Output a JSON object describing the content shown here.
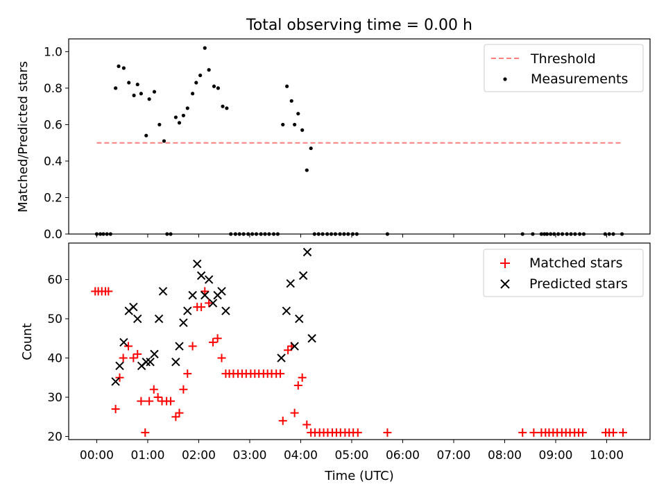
{
  "chart_data": [
    {
      "type": "scatter",
      "title": "Total observing time = 0.00 h",
      "ylabel": "Matched/Predicted stars",
      "xlim": [
        -0.55,
        10.85
      ],
      "ylim": [
        0,
        1.07
      ],
      "yticks": [
        0.0,
        0.2,
        0.4,
        0.6,
        0.8,
        1.0
      ],
      "ytick_labels": [
        "0.0",
        "0.2",
        "0.4",
        "0.6",
        "0.8",
        "1.0"
      ],
      "legend_position": "top-right",
      "threshold": {
        "name": "Threshold",
        "value": 0.5,
        "x_range": [
          0,
          10.3
        ],
        "color": "#ff7f7f",
        "style": "dashed"
      },
      "series": [
        {
          "name": "Measurements",
          "color": "#000000",
          "x": [
            0.0,
            0.07,
            0.13,
            0.2,
            0.27,
            0.37,
            0.43,
            0.53,
            0.63,
            0.73,
            0.8,
            0.87,
            0.97,
            1.03,
            1.13,
            1.23,
            1.32,
            1.38,
            1.45,
            1.55,
            1.62,
            1.7,
            1.78,
            1.88,
            1.95,
            2.03,
            2.12,
            2.2,
            2.3,
            2.38,
            2.47,
            2.55,
            2.63,
            2.72,
            2.8,
            2.88,
            2.97,
            3.05,
            3.13,
            3.22,
            3.3,
            3.38,
            3.47,
            3.55,
            3.65,
            3.73,
            3.82,
            3.88,
            3.95,
            4.03,
            4.12,
            4.2,
            4.27,
            4.35,
            4.43,
            4.52,
            4.6,
            4.68,
            4.77,
            4.85,
            4.93,
            5.02,
            5.1,
            5.7,
            8.35,
            8.55,
            8.72,
            8.78,
            8.83,
            8.9,
            8.97,
            9.05,
            9.13,
            9.22,
            9.3,
            9.38,
            9.47,
            9.55,
            9.97,
            10.05,
            10.13,
            10.3
          ],
          "y": [
            0,
            0,
            0,
            0,
            0,
            0.8,
            0.92,
            0.91,
            0.83,
            0.76,
            0.82,
            0.77,
            0.54,
            0.74,
            0.78,
            0.6,
            0.51,
            0,
            0,
            0.64,
            0.61,
            0.65,
            0.69,
            0.77,
            0.83,
            0.87,
            1.02,
            0.9,
            0.81,
            0.8,
            0.7,
            0.69,
            0,
            0,
            0,
            0,
            0,
            0,
            0,
            0,
            0,
            0,
            0,
            0,
            0.6,
            0.81,
            0.73,
            0.6,
            0.66,
            0.57,
            0.35,
            0.47,
            0,
            0,
            0,
            0,
            0,
            0,
            0,
            0,
            0,
            0,
            0,
            0,
            0,
            0,
            0,
            0,
            0,
            0,
            0,
            0,
            0,
            0,
            0,
            0,
            0,
            0,
            0,
            0,
            0,
            0
          ]
        }
      ]
    },
    {
      "type": "scatter",
      "xlabel": "Time (UTC)",
      "ylabel": "Count",
      "xlim": [
        -0.55,
        10.85
      ],
      "ylim": [
        19.2,
        69.3
      ],
      "yticks": [
        20,
        30,
        40,
        50,
        60
      ],
      "ytick_labels": [
        "20",
        "30",
        "40",
        "50",
        "60"
      ],
      "xticks": [
        0,
        1,
        2,
        3,
        4,
        5,
        6,
        7,
        8,
        9,
        10
      ],
      "xtick_labels": [
        "00:00",
        "01:00",
        "02:00",
        "03:00",
        "04:00",
        "05:00",
        "06:00",
        "07:00",
        "08:00",
        "09:00",
        "10:00"
      ],
      "legend_position": "top-right",
      "series": [
        {
          "name": "Matched stars",
          "color": "#ff0000",
          "marker": "plus",
          "x": [
            -0.03,
            0.03,
            0.1,
            0.17,
            0.23,
            0.37,
            0.45,
            0.52,
            0.62,
            0.72,
            0.8,
            0.87,
            0.95,
            1.03,
            1.12,
            1.2,
            1.28,
            1.37,
            1.45,
            1.55,
            1.62,
            1.7,
            1.78,
            1.88,
            1.97,
            2.05,
            2.12,
            2.2,
            2.28,
            2.37,
            2.45,
            2.53,
            2.6,
            2.68,
            2.77,
            2.85,
            2.93,
            3.02,
            3.1,
            3.18,
            3.27,
            3.35,
            3.43,
            3.52,
            3.6,
            3.65,
            3.75,
            3.82,
            3.88,
            3.95,
            4.03,
            4.12,
            4.2,
            4.28,
            4.37,
            4.45,
            4.53,
            4.62,
            4.7,
            4.78,
            4.87,
            4.95,
            5.03,
            5.12,
            5.7,
            8.35,
            8.57,
            8.72,
            8.8,
            8.87,
            8.95,
            9.03,
            9.12,
            9.2,
            9.28,
            9.37,
            9.45,
            9.53,
            9.98,
            10.05,
            10.13,
            10.32
          ],
          "y": [
            57,
            57,
            57,
            57,
            57,
            27,
            35,
            40,
            43,
            40,
            41,
            29,
            21,
            29,
            32,
            30,
            29,
            29,
            29,
            25,
            26,
            32,
            36,
            43,
            53,
            53,
            57,
            54,
            44,
            45,
            40,
            36,
            36,
            36,
            36,
            36,
            36,
            36,
            36,
            36,
            36,
            36,
            36,
            36,
            36,
            24,
            42,
            43,
            26,
            33,
            35,
            23,
            21,
            21,
            21,
            21,
            21,
            21,
            21,
            21,
            21,
            21,
            21,
            21,
            21,
            21,
            21,
            21,
            21,
            21,
            21,
            21,
            21,
            21,
            21,
            21,
            21,
            21,
            21,
            21,
            21,
            21
          ]
        },
        {
          "name": "Predicted stars",
          "color": "#000000",
          "marker": "x",
          "x": [
            0.37,
            0.45,
            0.53,
            0.63,
            0.72,
            0.8,
            0.88,
            0.97,
            1.05,
            1.13,
            1.22,
            1.3,
            1.55,
            1.62,
            1.7,
            1.78,
            1.88,
            1.97,
            2.05,
            2.12,
            2.2,
            2.28,
            2.37,
            2.45,
            2.53,
            3.62,
            3.72,
            3.8,
            3.88,
            3.97,
            4.05,
            4.13,
            4.22
          ],
          "y": [
            34,
            38,
            44,
            52,
            53,
            50,
            38,
            39,
            39,
            41,
            50,
            57,
            39,
            43,
            49,
            52,
            56,
            64,
            61,
            56,
            60,
            54,
            56,
            57,
            52,
            40,
            52,
            59,
            43,
            50,
            61,
            67,
            45
          ]
        }
      ]
    }
  ]
}
